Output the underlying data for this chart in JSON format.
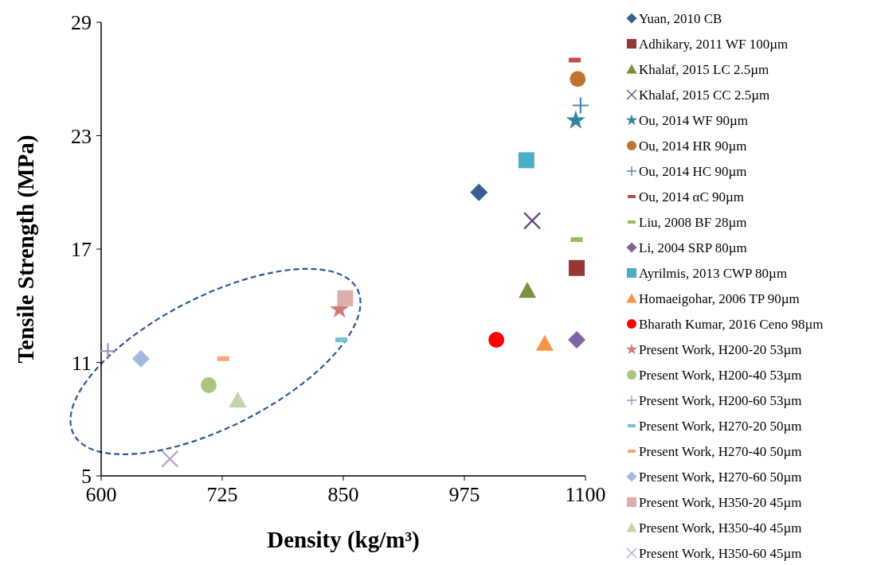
{
  "chart_data": {
    "type": "scatter",
    "xlabel": "Density (kg/m³)",
    "ylabel": "Tensile Strength (MPa)",
    "xlim": [
      600,
      1100
    ],
    "xticks": [
      600,
      725,
      850,
      975,
      1100
    ],
    "ylim": [
      5,
      29
    ],
    "yticks": [
      5,
      11,
      17,
      23,
      29
    ],
    "grid": false,
    "legend": "right",
    "series": [
      {
        "name": "Yuan, 2010 CB",
        "color": "#376092",
        "marker": "diamond",
        "x": [
          990
        ],
        "values": [
          20.0
        ]
      },
      {
        "name": "Adhikary, 2011 WF 100µm",
        "color": "#953735",
        "marker": "square",
        "x": [
          1091
        ],
        "values": [
          16.0
        ]
      },
      {
        "name": "Khalaf, 2015 LC 2.5µm",
        "color": "#77933c",
        "marker": "triangle",
        "x": [
          1040
        ],
        "values": [
          14.8
        ]
      },
      {
        "name": "Khalaf, 2015 CC 2.5µm",
        "color": "#604a7b",
        "marker": "cross",
        "x": [
          1045
        ],
        "values": [
          18.5
        ]
      },
      {
        "name": "Ou, 2014 WF 90µm",
        "color": "#31859c",
        "marker": "star",
        "x": [
          1090
        ],
        "values": [
          23.8
        ]
      },
      {
        "name": "Ou, 2014 HR 90µm",
        "color": "#c0732f",
        "marker": "circle",
        "x": [
          1092
        ],
        "values": [
          26.0
        ]
      },
      {
        "name": "Ou, 2014 HC 90µm",
        "color": "#4f81bd",
        "marker": "plus",
        "x": [
          1095
        ],
        "values": [
          24.6
        ]
      },
      {
        "name": "Ou, 2014 αC 90µm",
        "color": "#c0504d",
        "x": [
          1089
        ],
        "values": [
          27.0
        ]
      },
      {
        "name": "Liu, 2008 BF 28µm",
        "color": "#9bbb59",
        "x": [
          1091
        ],
        "values": [
          17.5
        ]
      },
      {
        "name": "Li, 2004 SRP 80µm",
        "color": "#8064a2",
        "marker": "diamond",
        "x": [
          1091
        ],
        "values": [
          12.2
        ]
      },
      {
        "name": "Ayrilmis, 2013 CWP 80µm",
        "color": "#4bacc6",
        "marker": "square",
        "x": [
          1039
        ],
        "values": [
          21.7
        ]
      },
      {
        "name": "Homaeigohar, 2006 TP 90µm",
        "color": "#f79646",
        "marker": "triangle",
        "x": [
          1058
        ],
        "values": [
          12.0
        ]
      },
      {
        "name": "Bharath Kumar, 2016 Ceno 98µm",
        "color": "#ff0000",
        "marker": "circle",
        "x": [
          1008
        ],
        "values": [
          12.2
        ]
      },
      {
        "name": "Present Work, H200-20 53µm",
        "color": "#d07b79",
        "marker": "star",
        "x": [
          846
        ],
        "values": [
          13.8
        ]
      },
      {
        "name": "Present Work, H200-40 53µm",
        "color": "#a9c47f",
        "marker": "circle",
        "x": [
          711
        ],
        "values": [
          9.8
        ]
      },
      {
        "name": "Present Work, H200-60 53µm",
        "color": "#a08fbf",
        "marker": "plus",
        "x": [
          607
        ],
        "values": [
          11.6
        ]
      },
      {
        "name": "Present Work, H270-20 50µm",
        "color": "#78c0d8",
        "x": [
          848
        ],
        "values": [
          12.2
        ]
      },
      {
        "name": "Present Work, H270-40 50µm",
        "color": "#f9a870",
        "x": [
          726
        ],
        "values": [
          11.2
        ]
      },
      {
        "name": "Present Work, H270-60 50µm",
        "color": "#a6b9dc",
        "marker": "diamond",
        "x": [
          641
        ],
        "values": [
          11.2
        ]
      },
      {
        "name": "Present Work, H350-20 45µm",
        "color": "#dcaeae",
        "marker": "square",
        "x": [
          852
        ],
        "values": [
          14.4
        ]
      },
      {
        "name": "Present Work, H350-40 45µm",
        "color": "#c3d5a8",
        "marker": "triangle",
        "x": [
          741
        ],
        "values": [
          9.0
        ]
      },
      {
        "name": "Present Work, H350-60 45µm",
        "color": "#b3a8c9",
        "marker": "cross",
        "x": [
          671
        ],
        "values": [
          5.9
        ]
      }
    ]
  }
}
